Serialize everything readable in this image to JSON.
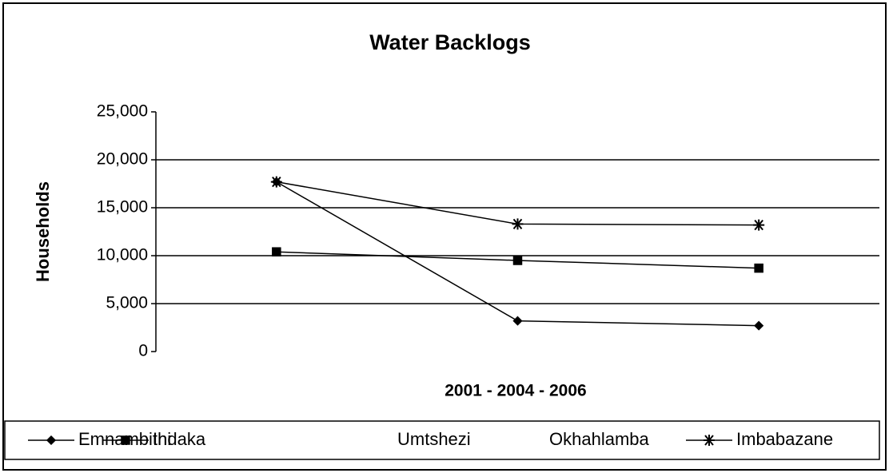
{
  "chart_data": {
    "type": "line",
    "title": "Water Backlogs",
    "y_label": "Households",
    "x_label": "2001 - 2004 - 2006",
    "categories": [
      null,
      null,
      null
    ],
    "series": [
      {
        "name": "Emnambithi",
        "color": "#000000",
        "marker": "diamond",
        "values": [
          17700,
          3200,
          2700
        ]
      },
      {
        "name": "Indaka",
        "color": "#000000",
        "marker": "square",
        "values": [
          10400,
          9500,
          8700
        ]
      },
      {
        "name": "Umtshezi",
        "color": "#ffffff",
        "marker": "none",
        "values": [
          null,
          null,
          null
        ]
      },
      {
        "name": "Okhahlamba",
        "color": "#ffffff",
        "marker": "none",
        "values": [
          null,
          null,
          null
        ]
      },
      {
        "name": "Imbabazane",
        "color": "#000000",
        "marker": "star",
        "values": [
          17700,
          13300,
          13200
        ]
      }
    ],
    "ylim": [
      0,
      25000
    ],
    "yticks": [
      0,
      {
        "value": 5000,
        "label": "5,000"
      },
      {
        "value": 10000,
        "label": "10,000"
      },
      {
        "value": 15000,
        "label": "15,000"
      },
      {
        "value": 20000,
        "label": "20,000"
      },
      {
        "value": 25000,
        "label": "25,000"
      }
    ],
    "grid": true,
    "legend": "bottom"
  }
}
